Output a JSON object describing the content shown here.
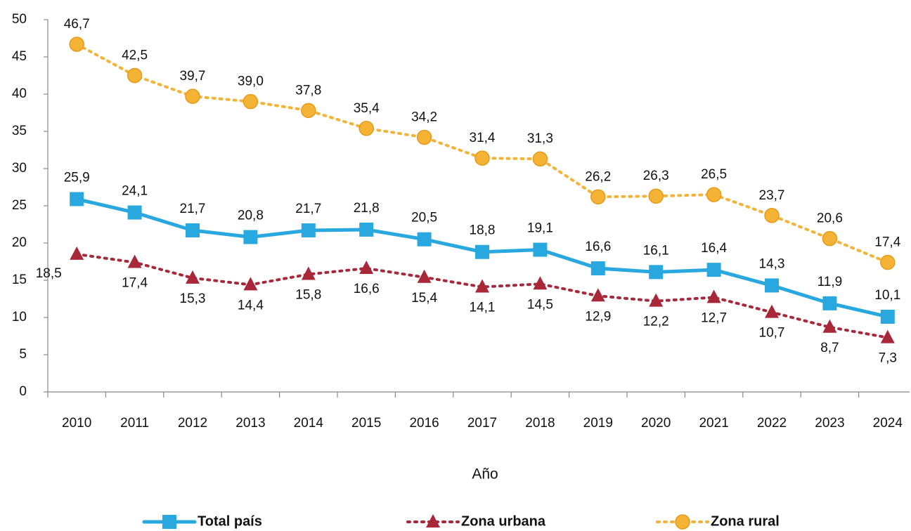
{
  "chart_data": {
    "type": "line",
    "x_label": "Año",
    "categories": [
      "2010",
      "2011",
      "2012",
      "2013",
      "2014",
      "2015",
      "2016",
      "2017",
      "2018",
      "2019",
      "2020",
      "2021",
      "2022",
      "2023",
      "2024"
    ],
    "series": [
      {
        "name": "Total país",
        "color": "#29a8e0",
        "marker": "square",
        "dash": "solid",
        "values": [
          25.9,
          24.1,
          21.7,
          20.8,
          21.7,
          21.8,
          20.5,
          18.8,
          19.1,
          16.6,
          16.1,
          16.4,
          14.3,
          11.9,
          10.1
        ],
        "value_labels": [
          "25,9",
          "24,1",
          "21,7",
          "20,8",
          "21,7",
          "21,8",
          "20,5",
          "18,8",
          "19,1",
          "16,6",
          "16,1",
          "16,4",
          "14,3",
          "11,9",
          "10,1"
        ]
      },
      {
        "name": "Zona urbana",
        "color": "#a8283a",
        "marker": "triangle",
        "dash": "dotted",
        "values": [
          18.5,
          17.4,
          15.3,
          14.4,
          15.8,
          16.6,
          15.4,
          14.1,
          14.5,
          12.9,
          12.2,
          12.7,
          10.7,
          8.7,
          7.3
        ],
        "value_labels": [
          "18,5",
          "17,4",
          "15,3",
          "14,4",
          "15,8",
          "16,6",
          "15,4",
          "14,1",
          "14,5",
          "12,9",
          "12,2",
          "12,7",
          "10,7",
          "8,7",
          "7,3"
        ]
      },
      {
        "name": "Zona rural",
        "color": "#f5b335",
        "marker": "circle",
        "dash": "dotted",
        "values": [
          46.7,
          42.5,
          39.7,
          39.0,
          37.8,
          35.4,
          34.2,
          31.4,
          31.3,
          26.2,
          26.3,
          26.5,
          23.7,
          20.6,
          17.4
        ],
        "value_labels": [
          "46,7",
          "42,5",
          "39,7",
          "39,0",
          "37,8",
          "35,4",
          "34,2",
          "31,4",
          "31,3",
          "26,2",
          "26,3",
          "26,5",
          "23,7",
          "20,6",
          "17,4"
        ]
      }
    ],
    "ylim": [
      0,
      50
    ],
    "yticks": [
      0,
      5,
      10,
      15,
      20,
      25,
      30,
      35,
      40,
      45,
      50
    ],
    "grid": false,
    "legend": "bottom"
  }
}
